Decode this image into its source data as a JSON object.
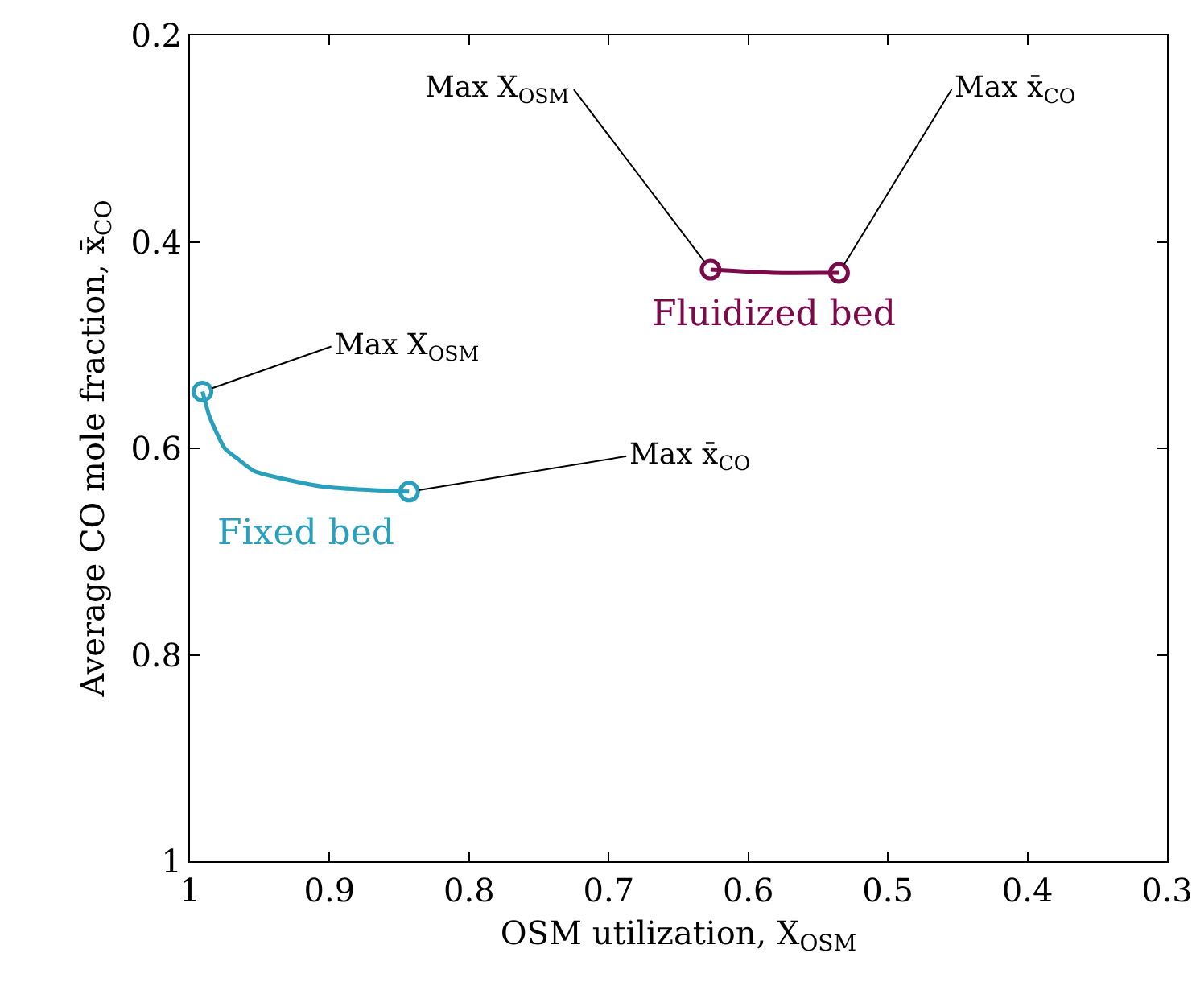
{
  "chart_data": {
    "type": "line",
    "xlabel": "OSM utilization, X$_{OSM}$",
    "ylabel": "Average CO mole fraction, x̄$_{CO}$",
    "xlim": [
      1,
      0.3
    ],
    "xticks": [
      1,
      0.9,
      0.8,
      0.7,
      0.6,
      0.5,
      0.4,
      0.3
    ],
    "ylim": [
      1,
      0.2
    ],
    "yticks": [
      1,
      0.8,
      0.6,
      0.4,
      0.2
    ],
    "grid": false,
    "legend": false,
    "line_style": "solid",
    "series": [
      {
        "name": "Fixed bed",
        "color": "#2a9fbc",
        "x": [
          0.991,
          0.986,
          0.975,
          0.965,
          0.954,
          0.905,
          0.843
        ],
        "values": [
          0.545,
          0.569,
          0.6,
          0.611,
          0.622,
          0.637,
          0.642
        ]
      },
      {
        "name": "Fluidized bed",
        "color": "#7b0a4b",
        "x": [
          0.627,
          0.582,
          0.535
        ],
        "values": [
          0.427,
          0.43,
          0.43
        ]
      }
    ],
    "annotations": [
      {
        "text": "Max X$_{OSM}$",
        "x": 0.991,
        "y": 0.545
      },
      {
        "text": "Max x̄$_{CO}$",
        "x": 0.843,
        "y": 0.642
      },
      {
        "text": "Max X$_{OSM}$",
        "x": 0.627,
        "y": 0.427
      },
      {
        "text": "Max x̄$_{CO}$",
        "x": 0.535,
        "y": 0.43
      }
    ]
  }
}
